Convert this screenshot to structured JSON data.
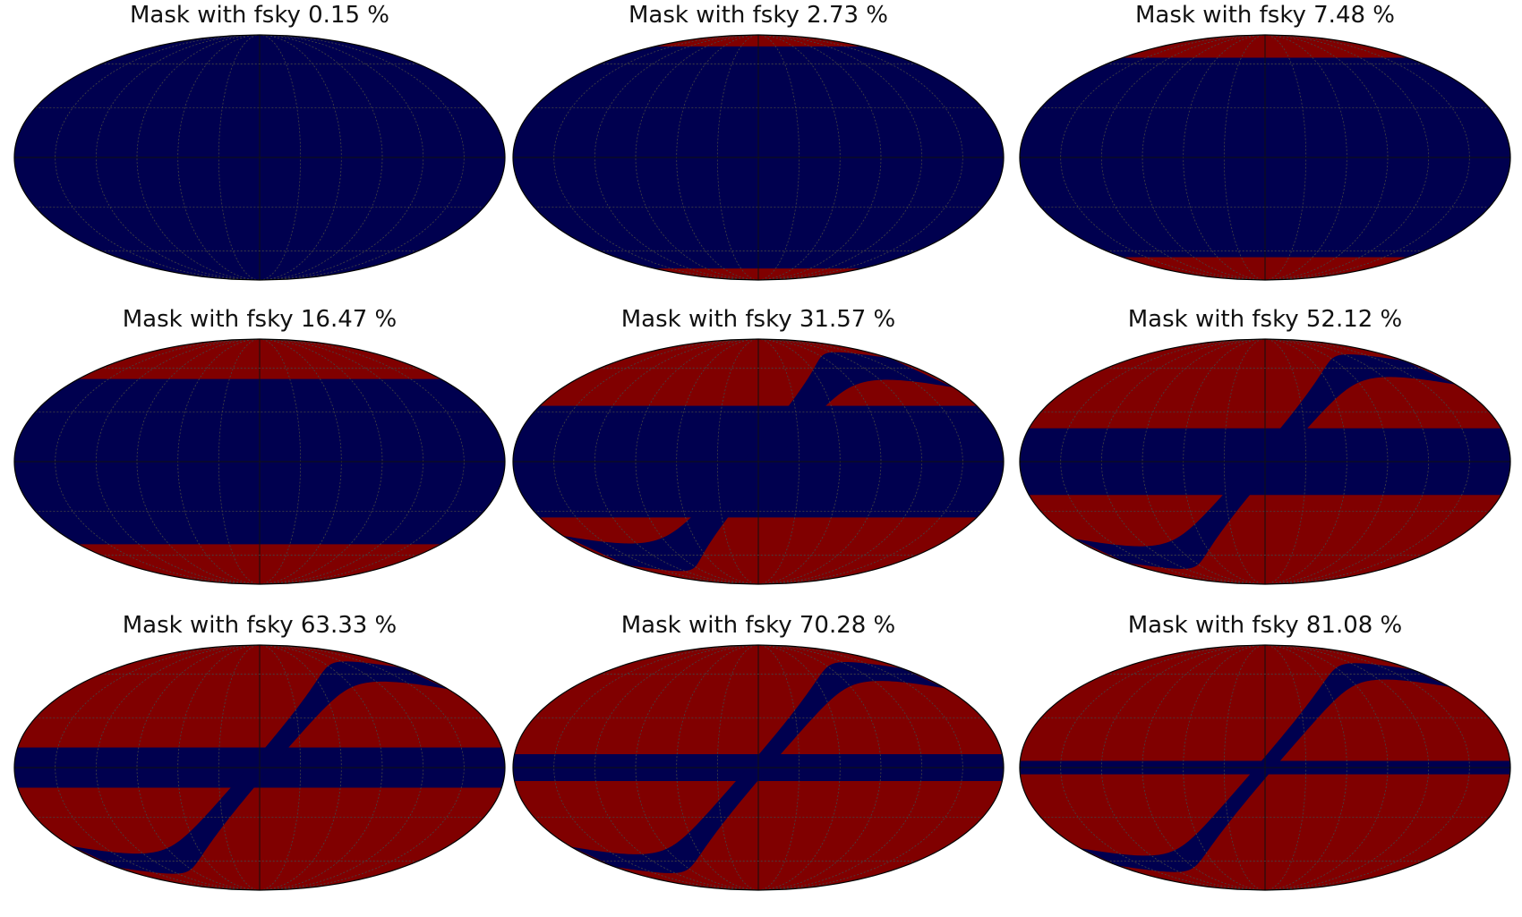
{
  "figure": {
    "projection": "mollweide",
    "colors": {
      "masked": "#00004f",
      "observed": "#800000",
      "graticule": "#444444",
      "outline": "#000000"
    },
    "graticule": {
      "meridian_step_deg": 30,
      "parallel_step_deg": 30
    },
    "panels": [
      {
        "title": "Mask with fsky 0.15 %",
        "fsky_percent": 0.15,
        "band": {
          "lat_cut_deg": 90,
          "wave_width_deg": 0,
          "wave_center_offset_deg": 0
        }
      },
      {
        "title": "Mask with fsky 2.73 %",
        "fsky_percent": 2.73,
        "band": {
          "lat_cut_deg": 75,
          "wave_width_deg": 0,
          "wave_center_offset_deg": 0
        }
      },
      {
        "title": "Mask with fsky 7.48 %",
        "fsky_percent": 7.48,
        "band": {
          "lat_cut_deg": 65,
          "wave_width_deg": 0,
          "wave_center_offset_deg": 0
        }
      },
      {
        "title": "Mask with fsky 16.47 %",
        "fsky_percent": 16.47,
        "band": {
          "lat_cut_deg": 52,
          "wave_width_deg": 0,
          "wave_center_offset_deg": 0
        }
      },
      {
        "title": "Mask with fsky 31.57 %",
        "fsky_percent": 31.57,
        "band": {
          "lat_cut_deg": 34,
          "wave_width_deg": 22,
          "wave_center_offset_deg": 0
        }
      },
      {
        "title": "Mask with fsky 52.12 %",
        "fsky_percent": 52.12,
        "band": {
          "lat_cut_deg": 20,
          "wave_width_deg": 18,
          "wave_center_offset_deg": 0
        }
      },
      {
        "title": "Mask with fsky 63.33 %",
        "fsky_percent": 63.33,
        "band": {
          "lat_cut_deg": 12,
          "wave_width_deg": 16,
          "wave_center_offset_deg": 0
        }
      },
      {
        "title": "Mask with fsky 70.28 %",
        "fsky_percent": 70.28,
        "band": {
          "lat_cut_deg": 8,
          "wave_width_deg": 15,
          "wave_center_offset_deg": 0
        }
      },
      {
        "title": "Mask with fsky 81.08 %",
        "fsky_percent": 81.08,
        "band": {
          "lat_cut_deg": 4,
          "wave_width_deg": 13,
          "wave_center_offset_deg": 0
        }
      }
    ]
  }
}
